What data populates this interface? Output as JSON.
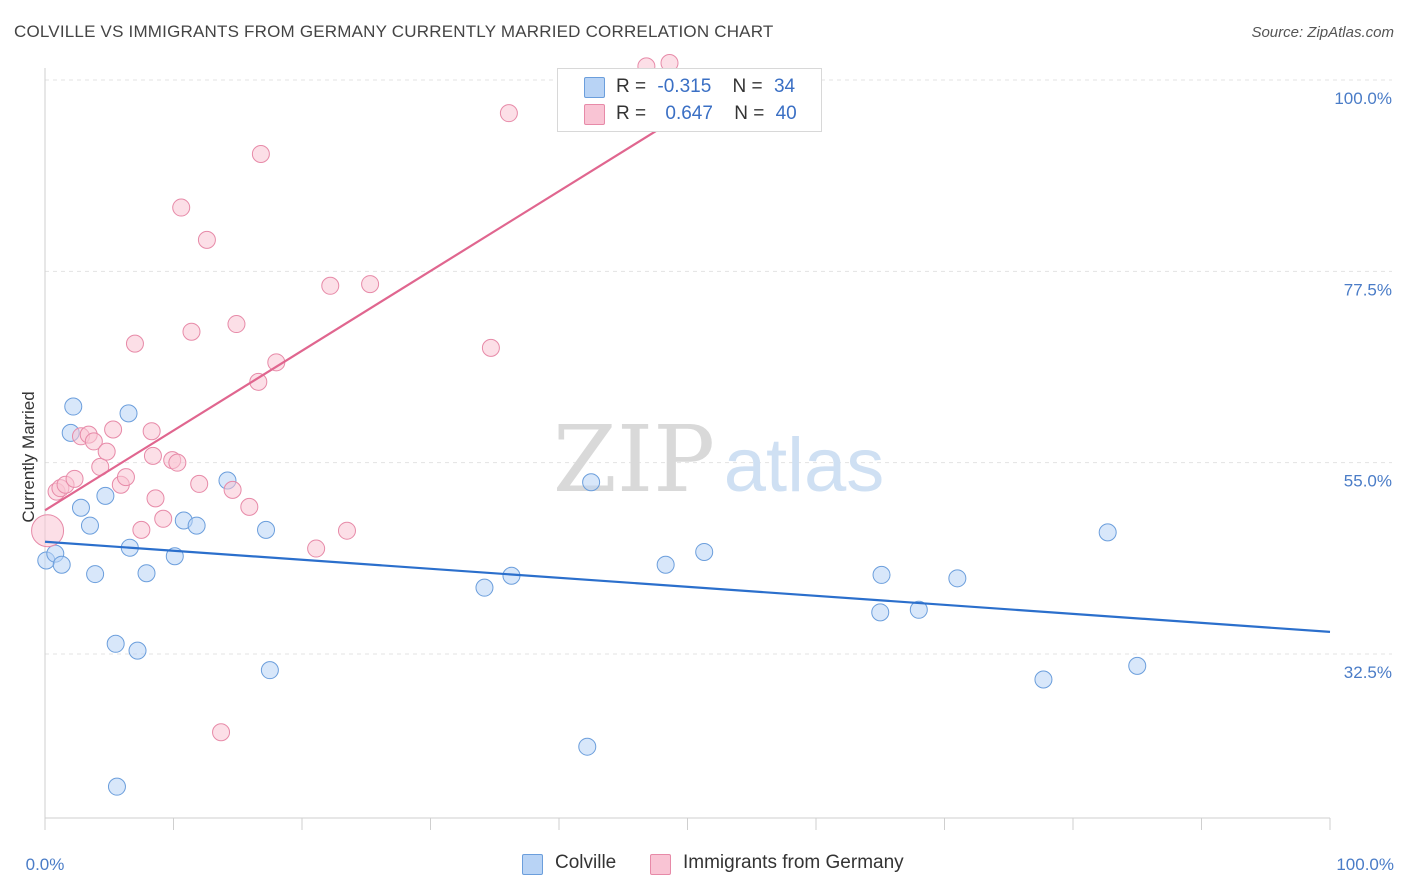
{
  "title": "COLVILLE VS IMMIGRANTS FROM GERMANY CURRENTLY MARRIED CORRELATION CHART",
  "source": "Source: ZipAtlas.com",
  "watermark": {
    "zip": "ZIP",
    "atlas": "atlas"
  },
  "legend": {
    "rows": [
      {
        "r_label": "R =",
        "r_value": "-0.315",
        "n_label": "N =",
        "n_value": "34",
        "color": "#b8d3f5"
      },
      {
        "r_label": "R =",
        "r_value": "0.647",
        "n_label": "N =",
        "n_value": "40",
        "color": "#f9c4d4"
      }
    ]
  },
  "bottom_legend": [
    {
      "label": "Colville",
      "color": "#b8d3f5"
    },
    {
      "label": "Immigrants from Germany",
      "color": "#f9c4d4"
    }
  ],
  "chart_data": {
    "type": "scatter",
    "title": "COLVILLE VS IMMIGRANTS FROM GERMANY CURRENTLY MARRIED CORRELATION CHART",
    "xlabel": "",
    "ylabel": "Currently Married",
    "xlim": [
      0,
      100
    ],
    "ylim": [
      12,
      100
    ],
    "x_tick_labels": [
      "0.0%",
      "100.0%"
    ],
    "y_ticks": [
      32.5,
      55.0,
      77.5,
      100.0
    ],
    "y_tick_labels": [
      "32.5%",
      "55.0%",
      "77.5%",
      "100.0%"
    ],
    "series": [
      {
        "name": "Colville",
        "color": "#b8d3f5",
        "line_color": "#2b6fcc",
        "trend": {
          "x": [
            0,
            100
          ],
          "y": [
            45.7,
            35.1
          ]
        },
        "points": [
          [
            0.1,
            43.5
          ],
          [
            0.8,
            44.3
          ],
          [
            1.3,
            43.0
          ],
          [
            2.0,
            58.5
          ],
          [
            2.2,
            61.6
          ],
          [
            2.8,
            49.7
          ],
          [
            3.5,
            47.6
          ],
          [
            3.9,
            41.9
          ],
          [
            4.7,
            51.1
          ],
          [
            5.5,
            33.7
          ],
          [
            5.6,
            16.9
          ],
          [
            6.5,
            60.8
          ],
          [
            6.6,
            45.0
          ],
          [
            7.2,
            32.9
          ],
          [
            7.9,
            42.0
          ],
          [
            10.1,
            44.0
          ],
          [
            10.8,
            48.2
          ],
          [
            11.8,
            47.6
          ],
          [
            14.2,
            52.9
          ],
          [
            17.2,
            47.1
          ],
          [
            17.5,
            30.6
          ],
          [
            34.2,
            40.3
          ],
          [
            36.3,
            41.7
          ],
          [
            42.5,
            52.7
          ],
          [
            42.2,
            21.6
          ],
          [
            51.3,
            44.5
          ],
          [
            48.3,
            43.0
          ],
          [
            65.0,
            37.4
          ],
          [
            65.1,
            41.8
          ],
          [
            68.0,
            37.7
          ],
          [
            71.0,
            41.4
          ],
          [
            77.7,
            29.5
          ],
          [
            82.7,
            46.8
          ],
          [
            85.0,
            31.1
          ]
        ]
      },
      {
        "name": "Immigrants from Germany",
        "color": "#f9c4d4",
        "line_color": "#e0668f",
        "trend": {
          "x": [
            0,
            50
          ],
          "y": [
            49.4,
            96.3
          ]
        },
        "points": [
          [
            0.2,
            47.0
          ],
          [
            0.9,
            51.6
          ],
          [
            1.2,
            52.0
          ],
          [
            1.6,
            52.4
          ],
          [
            2.3,
            53.1
          ],
          [
            2.8,
            58.1
          ],
          [
            3.4,
            58.3
          ],
          [
            3.8,
            57.5
          ],
          [
            4.3,
            54.5
          ],
          [
            4.8,
            56.3
          ],
          [
            5.3,
            58.9
          ],
          [
            5.9,
            52.4
          ],
          [
            6.3,
            53.3
          ],
          [
            7.0,
            69.0
          ],
          [
            7.5,
            47.1
          ],
          [
            8.3,
            58.7
          ],
          [
            8.4,
            55.8
          ],
          [
            8.6,
            50.8
          ],
          [
            9.2,
            48.4
          ],
          [
            9.9,
            55.3
          ],
          [
            10.3,
            55.0
          ],
          [
            10.6,
            85.0
          ],
          [
            11.4,
            70.4
          ],
          [
            12.0,
            52.5
          ],
          [
            12.6,
            81.2
          ],
          [
            13.7,
            23.3
          ],
          [
            14.6,
            51.8
          ],
          [
            14.9,
            71.3
          ],
          [
            15.9,
            49.8
          ],
          [
            16.6,
            64.5
          ],
          [
            16.8,
            91.3
          ],
          [
            18.0,
            66.8
          ],
          [
            21.1,
            44.9
          ],
          [
            22.2,
            75.8
          ],
          [
            23.5,
            47.0
          ],
          [
            25.3,
            76.0
          ],
          [
            34.7,
            68.5
          ],
          [
            36.1,
            96.1
          ],
          [
            46.8,
            101.6
          ],
          [
            48.6,
            102.0
          ]
        ]
      }
    ]
  }
}
